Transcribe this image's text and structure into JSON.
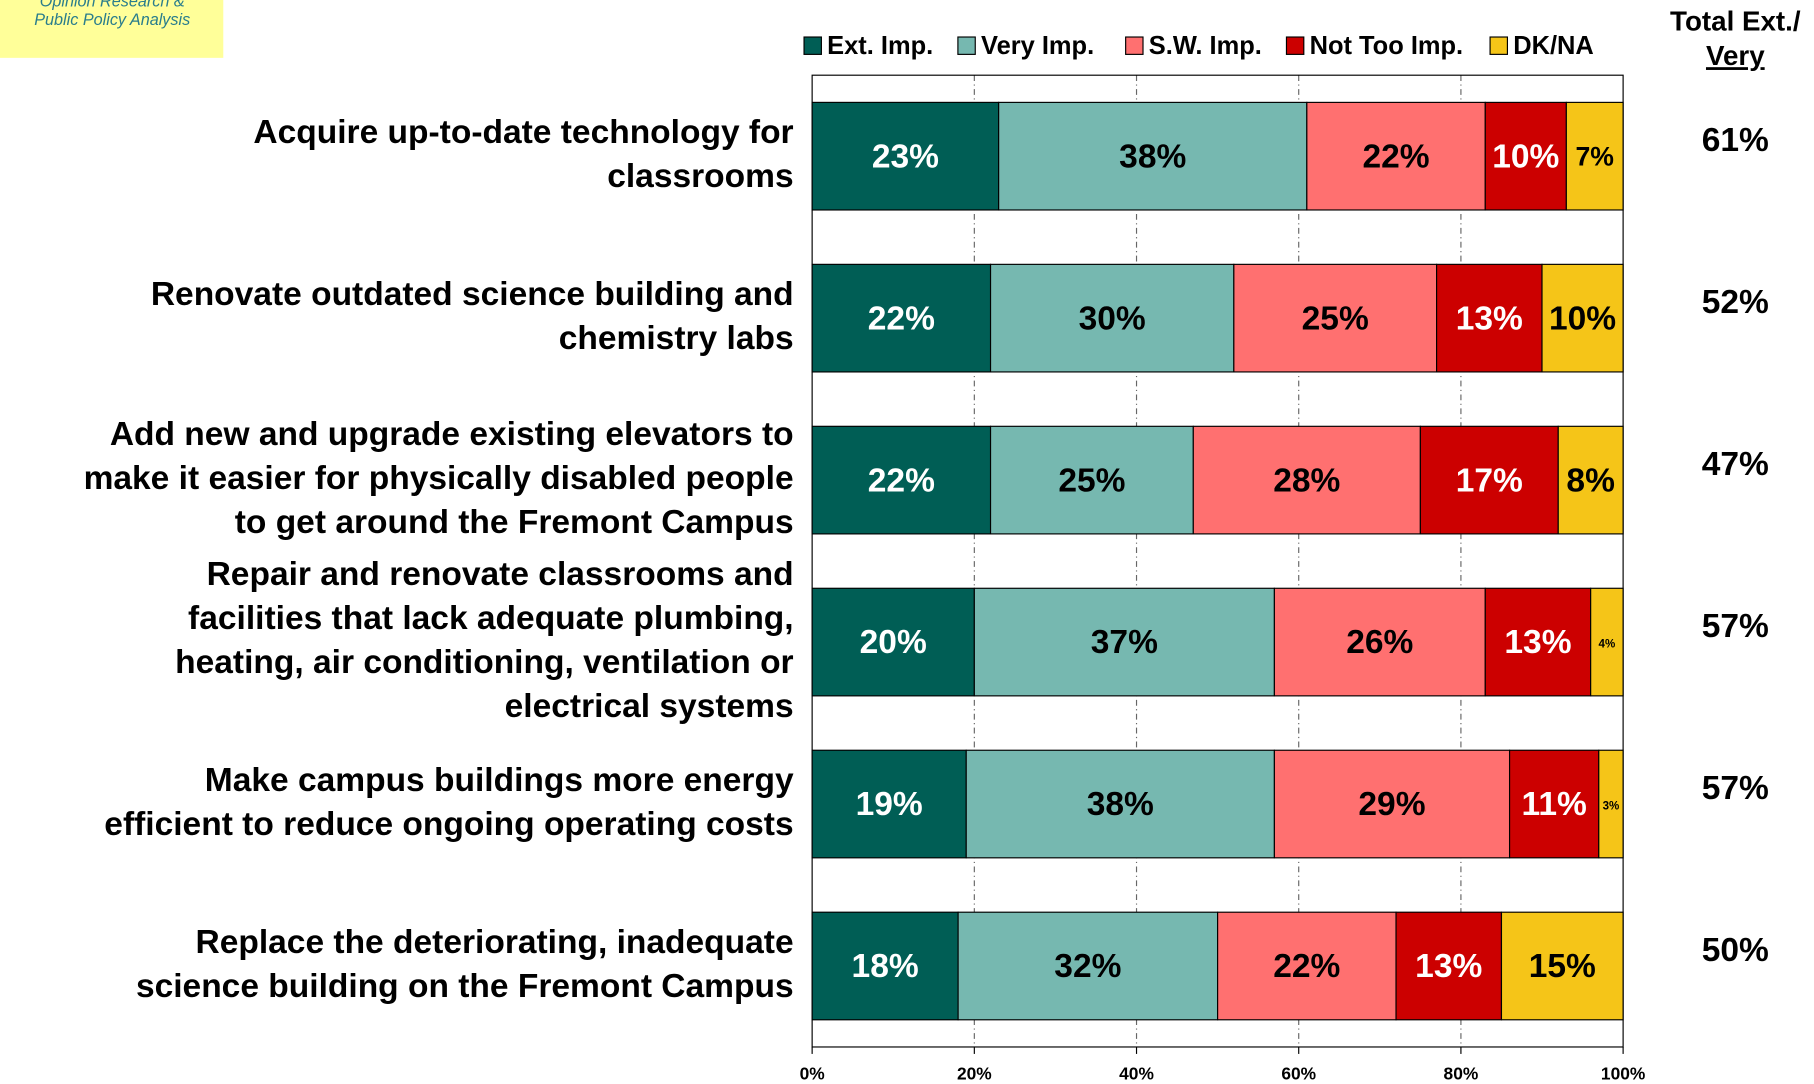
{
  "logo": [
    "Opinion Research &",
    "Public Policy Analysis"
  ],
  "chart_data": {
    "type": "stacked-barh",
    "categories": [
      [
        "Acquire up-to-date technology for",
        "classrooms"
      ],
      [
        "Renovate outdated science building and",
        "chemistry labs"
      ],
      [
        "Add new and upgrade existing elevators to",
        "make it easier for physically disabled people",
        "to get around the Fremont Campus"
      ],
      [
        "Repair and renovate classrooms and",
        "facilities that lack adequate plumbing,",
        "heating, air conditioning, ventilation or",
        "electrical systems"
      ],
      [
        "Make campus buildings more energy",
        "efficient to reduce ongoing operating costs"
      ],
      [
        "Replace the deteriorating, inadequate",
        "science building on the Fremont Campus"
      ]
    ],
    "series": [
      {
        "name": "Ext. Imp.",
        "color": "#005e55",
        "label_color": "#ffffff",
        "values": [
          23,
          22,
          22,
          20,
          19,
          18
        ],
        "value_labels": [
          "23%",
          "22%",
          "22%",
          "20%",
          "19%",
          "18%"
        ]
      },
      {
        "name": "Very Imp.",
        "color": "#76b8b0",
        "label_color": "#000000",
        "values": [
          38,
          30,
          25,
          37,
          38,
          32
        ],
        "value_labels": [
          "38%",
          "30%",
          "25%",
          "37%",
          "38%",
          "32%"
        ]
      },
      {
        "name": "S.W. Imp.",
        "color": "#ff7070",
        "label_color": "#000000",
        "values": [
          22,
          25,
          28,
          26,
          29,
          22
        ],
        "value_labels": [
          "22%",
          "25%",
          "28%",
          "26%",
          "29%",
          "22%"
        ]
      },
      {
        "name": "Not Too Imp.",
        "color": "#cc0000",
        "label_color": "#ffffff",
        "values": [
          10,
          13,
          17,
          13,
          11,
          13
        ],
        "value_labels": [
          "10%",
          "13%",
          "17%",
          "13%",
          "11%",
          "13%"
        ]
      },
      {
        "name": "DK/NA",
        "color": "#f5c518",
        "label_color": "#000000",
        "values": [
          7,
          10,
          8,
          4,
          3,
          15
        ],
        "value_labels": [
          "7%",
          "10%",
          "8%",
          "4%",
          "3%",
          "15%"
        ]
      }
    ],
    "xlim": [
      0,
      100
    ],
    "xticks": [
      {
        "value": 0,
        "label": "0%"
      },
      {
        "value": 20,
        "label": "20%"
      },
      {
        "value": 40,
        "label": "40%"
      },
      {
        "value": 60,
        "label": "60%"
      },
      {
        "value": 80,
        "label": "80%"
      },
      {
        "value": 100,
        "label": "100%"
      }
    ],
    "grid": true,
    "totals": {
      "header": [
        "Total Ext./",
        "Very"
      ],
      "values": [
        61,
        52,
        47,
        57,
        57,
        50
      ],
      "value_labels": [
        "61%",
        "52%",
        "47%",
        "57%",
        "57%",
        "50%"
      ]
    }
  }
}
